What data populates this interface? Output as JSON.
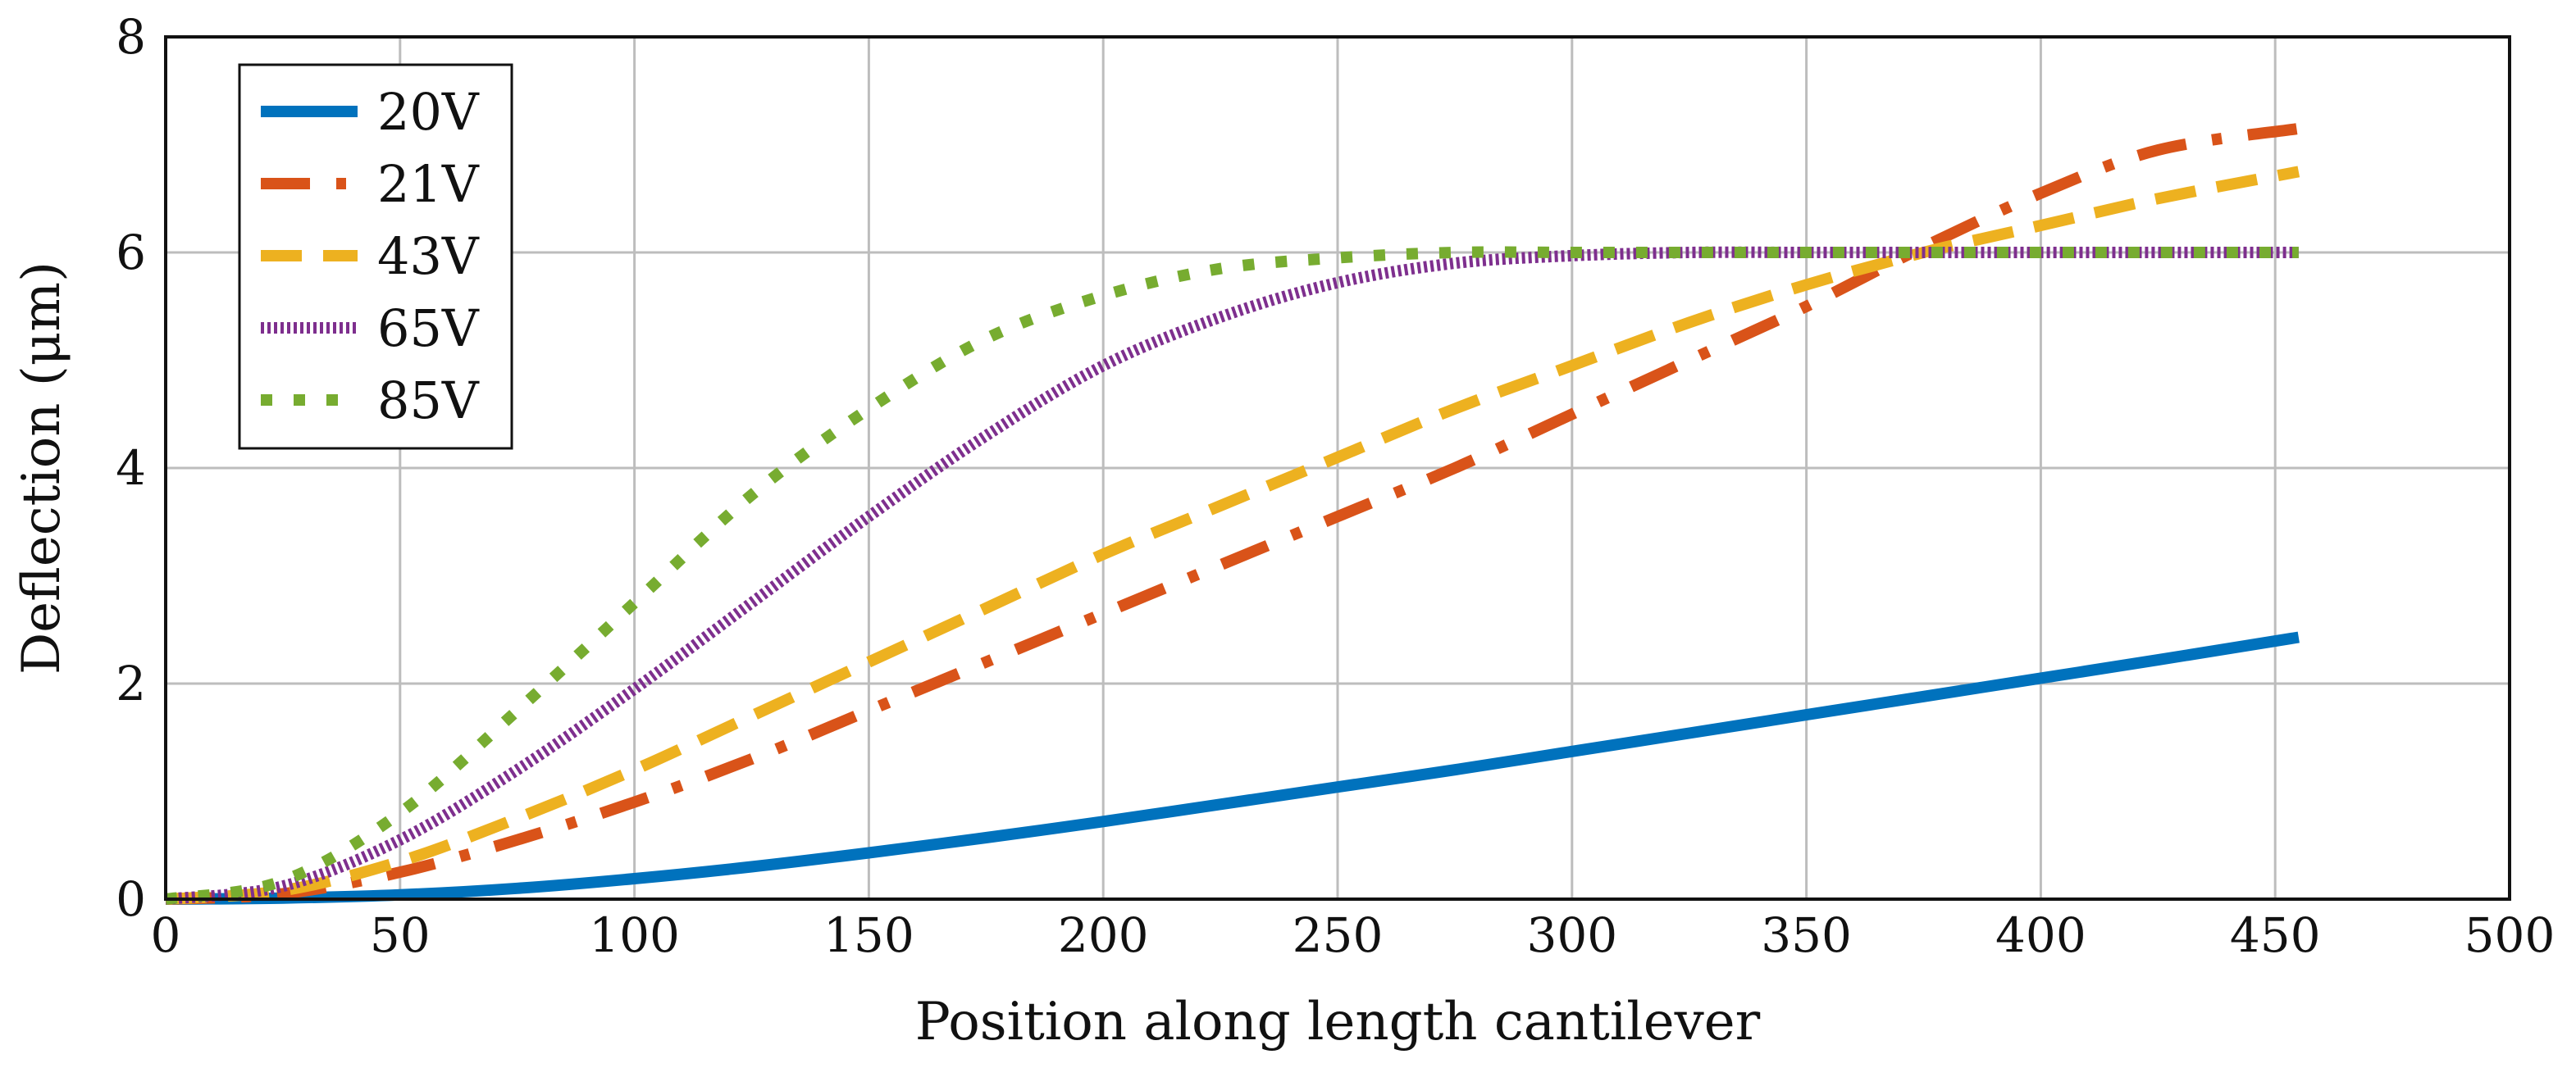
{
  "chart_data": {
    "type": "line",
    "title": "",
    "xlabel": "Position along length cantilever",
    "ylabel": "Deflection (μm)",
    "xlim": [
      0,
      500
    ],
    "ylim": [
      0,
      8
    ],
    "xticks": [
      "0",
      "50",
      "100",
      "150",
      "200",
      "250",
      "300",
      "350",
      "400",
      "450",
      "500"
    ],
    "yticks": [
      "0",
      "2",
      "4",
      "6",
      "8"
    ],
    "grid": true,
    "legend_position": "top-left",
    "x": [
      0,
      25,
      50,
      75,
      100,
      125,
      150,
      175,
      200,
      225,
      250,
      275,
      300,
      325,
      350,
      375,
      400,
      425,
      455
    ],
    "series": [
      {
        "name": "20V",
        "style": "solid",
        "color": "#0072BD",
        "values": [
          0,
          0.01,
          0.04,
          0.1,
          0.19,
          0.3,
          0.43,
          0.57,
          0.72,
          0.88,
          1.04,
          1.2,
          1.37,
          1.54,
          1.71,
          1.88,
          2.05,
          2.22,
          2.43
        ]
      },
      {
        "name": "21V",
        "style": "dash-dot",
        "color": "#D95319",
        "values": [
          0,
          0.05,
          0.25,
          0.55,
          0.9,
          1.3,
          1.75,
          2.2,
          2.65,
          3.1,
          3.55,
          4.0,
          4.5,
          5.0,
          5.5,
          6.05,
          6.55,
          6.95,
          7.15
        ]
      },
      {
        "name": "43V",
        "style": "dashed",
        "color": "#EDB120",
        "values": [
          0,
          0.08,
          0.35,
          0.75,
          1.2,
          1.7,
          2.2,
          2.7,
          3.2,
          3.65,
          4.1,
          4.55,
          4.95,
          5.35,
          5.7,
          6.0,
          6.25,
          6.5,
          6.75
        ]
      },
      {
        "name": "65V",
        "style": "dotted",
        "color": "#7E2F8E",
        "values": [
          0,
          0.12,
          0.55,
          1.2,
          1.95,
          2.75,
          3.55,
          4.3,
          4.95,
          5.4,
          5.72,
          5.9,
          5.97,
          6.0,
          6.0,
          6.0,
          6.0,
          6.0,
          6.0
        ]
      },
      {
        "name": "85V",
        "style": "dotted-sparse",
        "color": "#77AC30",
        "values": [
          0,
          0.17,
          0.8,
          1.75,
          2.75,
          3.75,
          4.55,
          5.2,
          5.6,
          5.85,
          5.95,
          6.0,
          6.0,
          6.0,
          6.0,
          6.0,
          6.0,
          6.0,
          6.0
        ]
      }
    ]
  }
}
